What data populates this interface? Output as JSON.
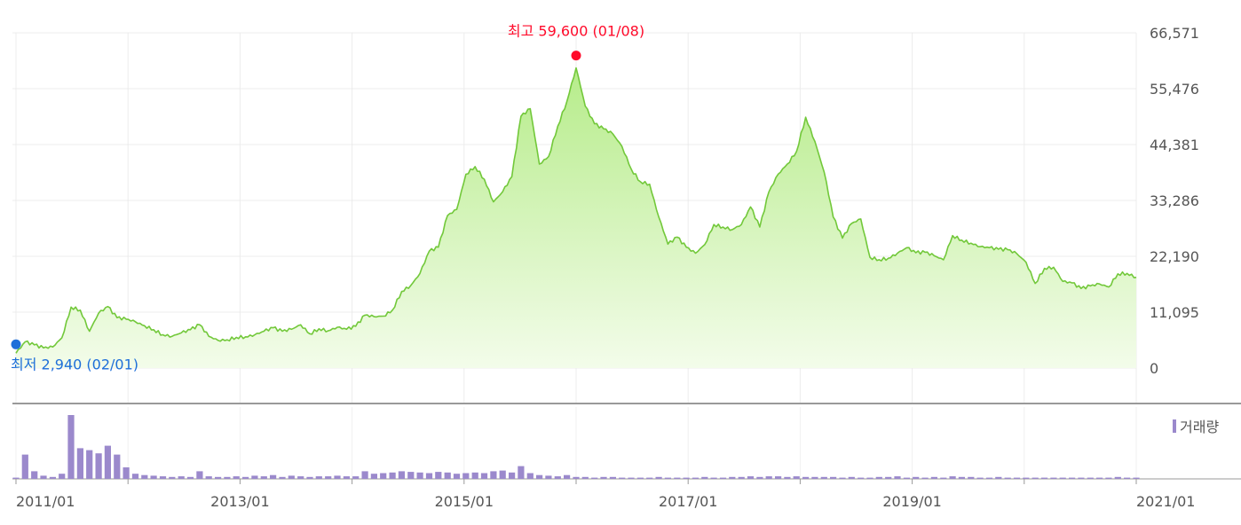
{
  "chart_data": [
    {
      "type": "area",
      "title": "",
      "ylim": [
        0,
        66571
      ],
      "y_ticks": [
        "0",
        "11,095",
        "22,190",
        "33,286",
        "44,381",
        "55,476",
        "66,571"
      ],
      "x_ticks": [
        "2011/01",
        "2013/01",
        "2015/01",
        "2017/01",
        "2019/01",
        "2021/01"
      ],
      "grid": true,
      "series": [
        {
          "x": [
            "2010-11",
            "2010-12",
            "2011-01",
            "2011-02",
            "2011-03",
            "2011-04",
            "2011-05",
            "2011-06",
            "2011-07",
            "2011-08",
            "2011-09",
            "2011-10",
            "2011-11",
            "2011-12",
            "2012-01",
            "2012-02",
            "2012-03",
            "2012-04",
            "2012-05",
            "2012-06",
            "2012-07",
            "2012-08",
            "2012-09",
            "2012-10",
            "2012-11",
            "2012-12",
            "2013-01",
            "2013-02",
            "2013-03",
            "2013-04",
            "2013-05",
            "2013-06",
            "2013-07",
            "2013-08",
            "2013-09",
            "2013-10",
            "2013-11",
            "2013-12",
            "2014-01",
            "2014-02",
            "2014-03",
            "2014-04",
            "2014-05",
            "2014-06",
            "2014-07",
            "2014-08",
            "2014-09",
            "2014-10",
            "2014-11",
            "2014-12",
            "2015-01",
            "2015-02",
            "2015-03",
            "2015-04",
            "2015-05",
            "2015-06",
            "2015-07",
            "2015-08",
            "2015-09",
            "2015-10",
            "2015-11",
            "2015-12",
            "2016-01",
            "2016-02",
            "2016-03",
            "2016-04",
            "2016-05",
            "2016-06",
            "2016-07",
            "2016-08",
            "2016-09",
            "2016-10",
            "2016-11",
            "2016-12",
            "2017-01",
            "2017-02",
            "2017-03",
            "2017-04",
            "2017-05",
            "2017-06",
            "2017-07",
            "2017-08",
            "2017-09",
            "2017-10",
            "2017-11",
            "2017-12",
            "2018-01",
            "2018-02",
            "2018-03",
            "2018-04",
            "2018-05",
            "2018-06",
            "2018-07",
            "2018-08",
            "2018-09",
            "2018-10",
            "2018-11",
            "2018-12",
            "2019-01",
            "2019-02",
            "2019-03",
            "2019-04",
            "2019-05",
            "2019-06",
            "2019-07",
            "2019-08",
            "2019-09",
            "2019-10",
            "2019-11",
            "2019-12",
            "2020-01",
            "2020-02",
            "2020-03",
            "2020-04",
            "2020-05",
            "2020-06",
            "2020-07",
            "2020-08",
            "2020-09",
            "2020-10",
            "2020-11",
            "2020-12",
            "2021-01"
          ],
          "values": [
            2940,
            5200,
            4600,
            4000,
            4200,
            6000,
            12100,
            11500,
            7300,
            10900,
            12200,
            10000,
            9700,
            9200,
            8400,
            7600,
            6600,
            6300,
            7000,
            7600,
            8600,
            6300,
            5500,
            5600,
            6100,
            6200,
            6600,
            7300,
            8000,
            7300,
            7700,
            8600,
            6800,
            7800,
            7400,
            8100,
            7700,
            8300,
            10500,
            10200,
            10300,
            11500,
            15200,
            16400,
            18800,
            23200,
            24000,
            30300,
            31500,
            38500,
            40000,
            37500,
            33000,
            35000,
            38000,
            50000,
            51500,
            40500,
            42000,
            48000,
            53000,
            59600,
            52000,
            48500,
            47500,
            46500,
            44000,
            39500,
            37000,
            36500,
            30000,
            24600,
            26000,
            24000,
            22800,
            24500,
            28500,
            28000,
            27500,
            28500,
            32000,
            28000,
            35000,
            38500,
            40500,
            43000,
            49800,
            45000,
            39000,
            30000,
            25800,
            28700,
            29600,
            22000,
            21500,
            21800,
            22800,
            23900,
            22900,
            23000,
            22300,
            21500,
            26300,
            25400,
            24800,
            24100,
            23900,
            23600,
            23500,
            22700,
            21000,
            16800,
            19800,
            20000,
            17200,
            16900,
            15800,
            16300,
            16700,
            16100,
            18700,
            18800,
            18000
          ]
        }
      ]
    },
    {
      "type": "bar",
      "title": "",
      "legend": "거래량",
      "values": [
        2,
        38,
        12,
        5,
        3,
        8,
        100,
        48,
        45,
        40,
        52,
        38,
        18,
        8,
        6,
        5,
        4,
        3,
        4,
        3,
        12,
        4,
        3,
        3,
        4,
        3,
        5,
        4,
        6,
        3,
        5,
        4,
        3,
        4,
        4,
        5,
        4,
        4,
        12,
        8,
        9,
        10,
        12,
        11,
        10,
        9,
        11,
        10,
        8,
        9,
        10,
        9,
        12,
        13,
        10,
        20,
        9,
        6,
        5,
        4,
        6,
        3,
        3,
        2,
        3,
        3,
        2,
        2,
        2,
        2,
        3,
        2,
        2,
        2,
        2,
        3,
        2,
        2,
        3,
        3,
        4,
        3,
        4,
        4,
        3,
        4,
        3,
        3,
        3,
        3,
        2,
        3,
        2,
        2,
        3,
        3,
        4,
        2,
        3,
        2,
        3,
        2,
        4,
        3,
        3,
        2,
        2,
        3,
        2,
        2,
        2,
        2,
        2,
        2,
        2,
        2,
        2,
        2,
        2,
        2,
        3,
        2,
        2
      ]
    }
  ],
  "annotations": {
    "max_label": "최고 59,600 (01/08)",
    "min_label": "최저 2,940 (02/01)"
  },
  "colors": {
    "line": "#72c83a",
    "fill_top": "#b6ec8a",
    "fill_bottom": "#f3fcea",
    "max_marker": "#ff0a2a",
    "min_marker": "#1e6fd9",
    "volume_bar": "#9b89cc"
  }
}
